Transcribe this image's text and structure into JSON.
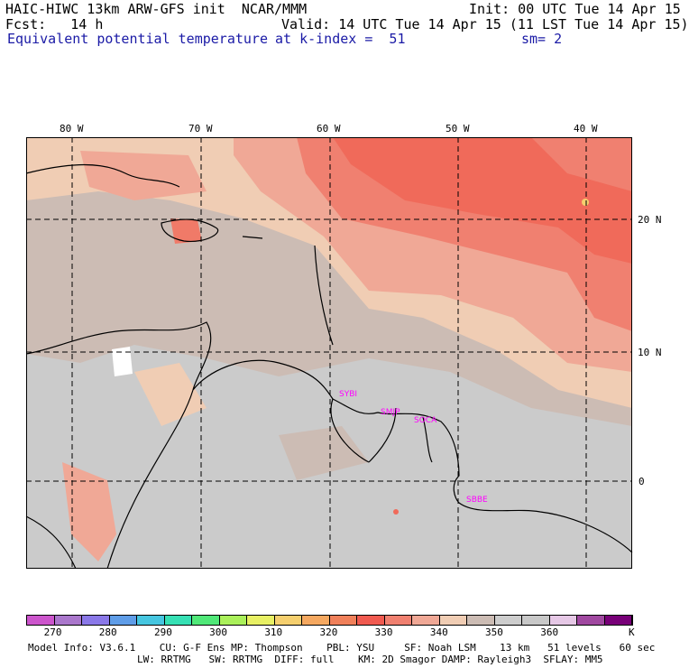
{
  "header": {
    "model_line": "HAIC-HIWC 13km ARW-GFS init  NCAR/MMM",
    "init": "Init: 00 UTC Tue 14 Apr 15",
    "fcst": "Fcst:   14 h",
    "valid": "Valid: 14 UTC Tue 14 Apr 15 (11 LST Tue 14 Apr 15)",
    "field": "Equivalent potential temperature",
    "level": "at k-index =  51",
    "smooth": "sm= 2"
  },
  "map": {
    "lon_ticks": [
      "80 W",
      "70 W",
      "60 W",
      "50 W",
      "40 W"
    ],
    "lat_ticks": [
      "20 N",
      "10 N",
      "0"
    ],
    "stations": [
      "SYBI",
      "SMJP",
      "SOCA",
      "SBBE"
    ]
  },
  "colorbar": {
    "colors": [
      "#cc55cc",
      "#aa77cc",
      "#8a78e8",
      "#5f9de8",
      "#46c6e0",
      "#36e0b4",
      "#50e878",
      "#aaf05a",
      "#e8f064",
      "#f5cf6e",
      "#f5a860",
      "#f0805a",
      "#f05a50",
      "#f08070",
      "#f0a896",
      "#f0cdb4",
      "#ccbcb4",
      "#cdcdcd",
      "#c8c8c8",
      "#e6c8e6",
      "#a048a0",
      "#780078"
    ],
    "labels": [
      "270",
      "280",
      "290",
      "300",
      "310",
      "320",
      "330",
      "340",
      "350",
      "360"
    ],
    "unit": "K"
  },
  "footer": {
    "line1": "Model Info: V3.6.1    CU: G-F Ens MP: Thompson    PBL: YSU     SF: Noah LSM    13 km   51 levels   60 sec",
    "line2": "LW: RRTMG   SW: RRTMG  DIFF: full    KM: 2D Smagor DAMP: Rayleigh3  SFLAY: MM5"
  }
}
